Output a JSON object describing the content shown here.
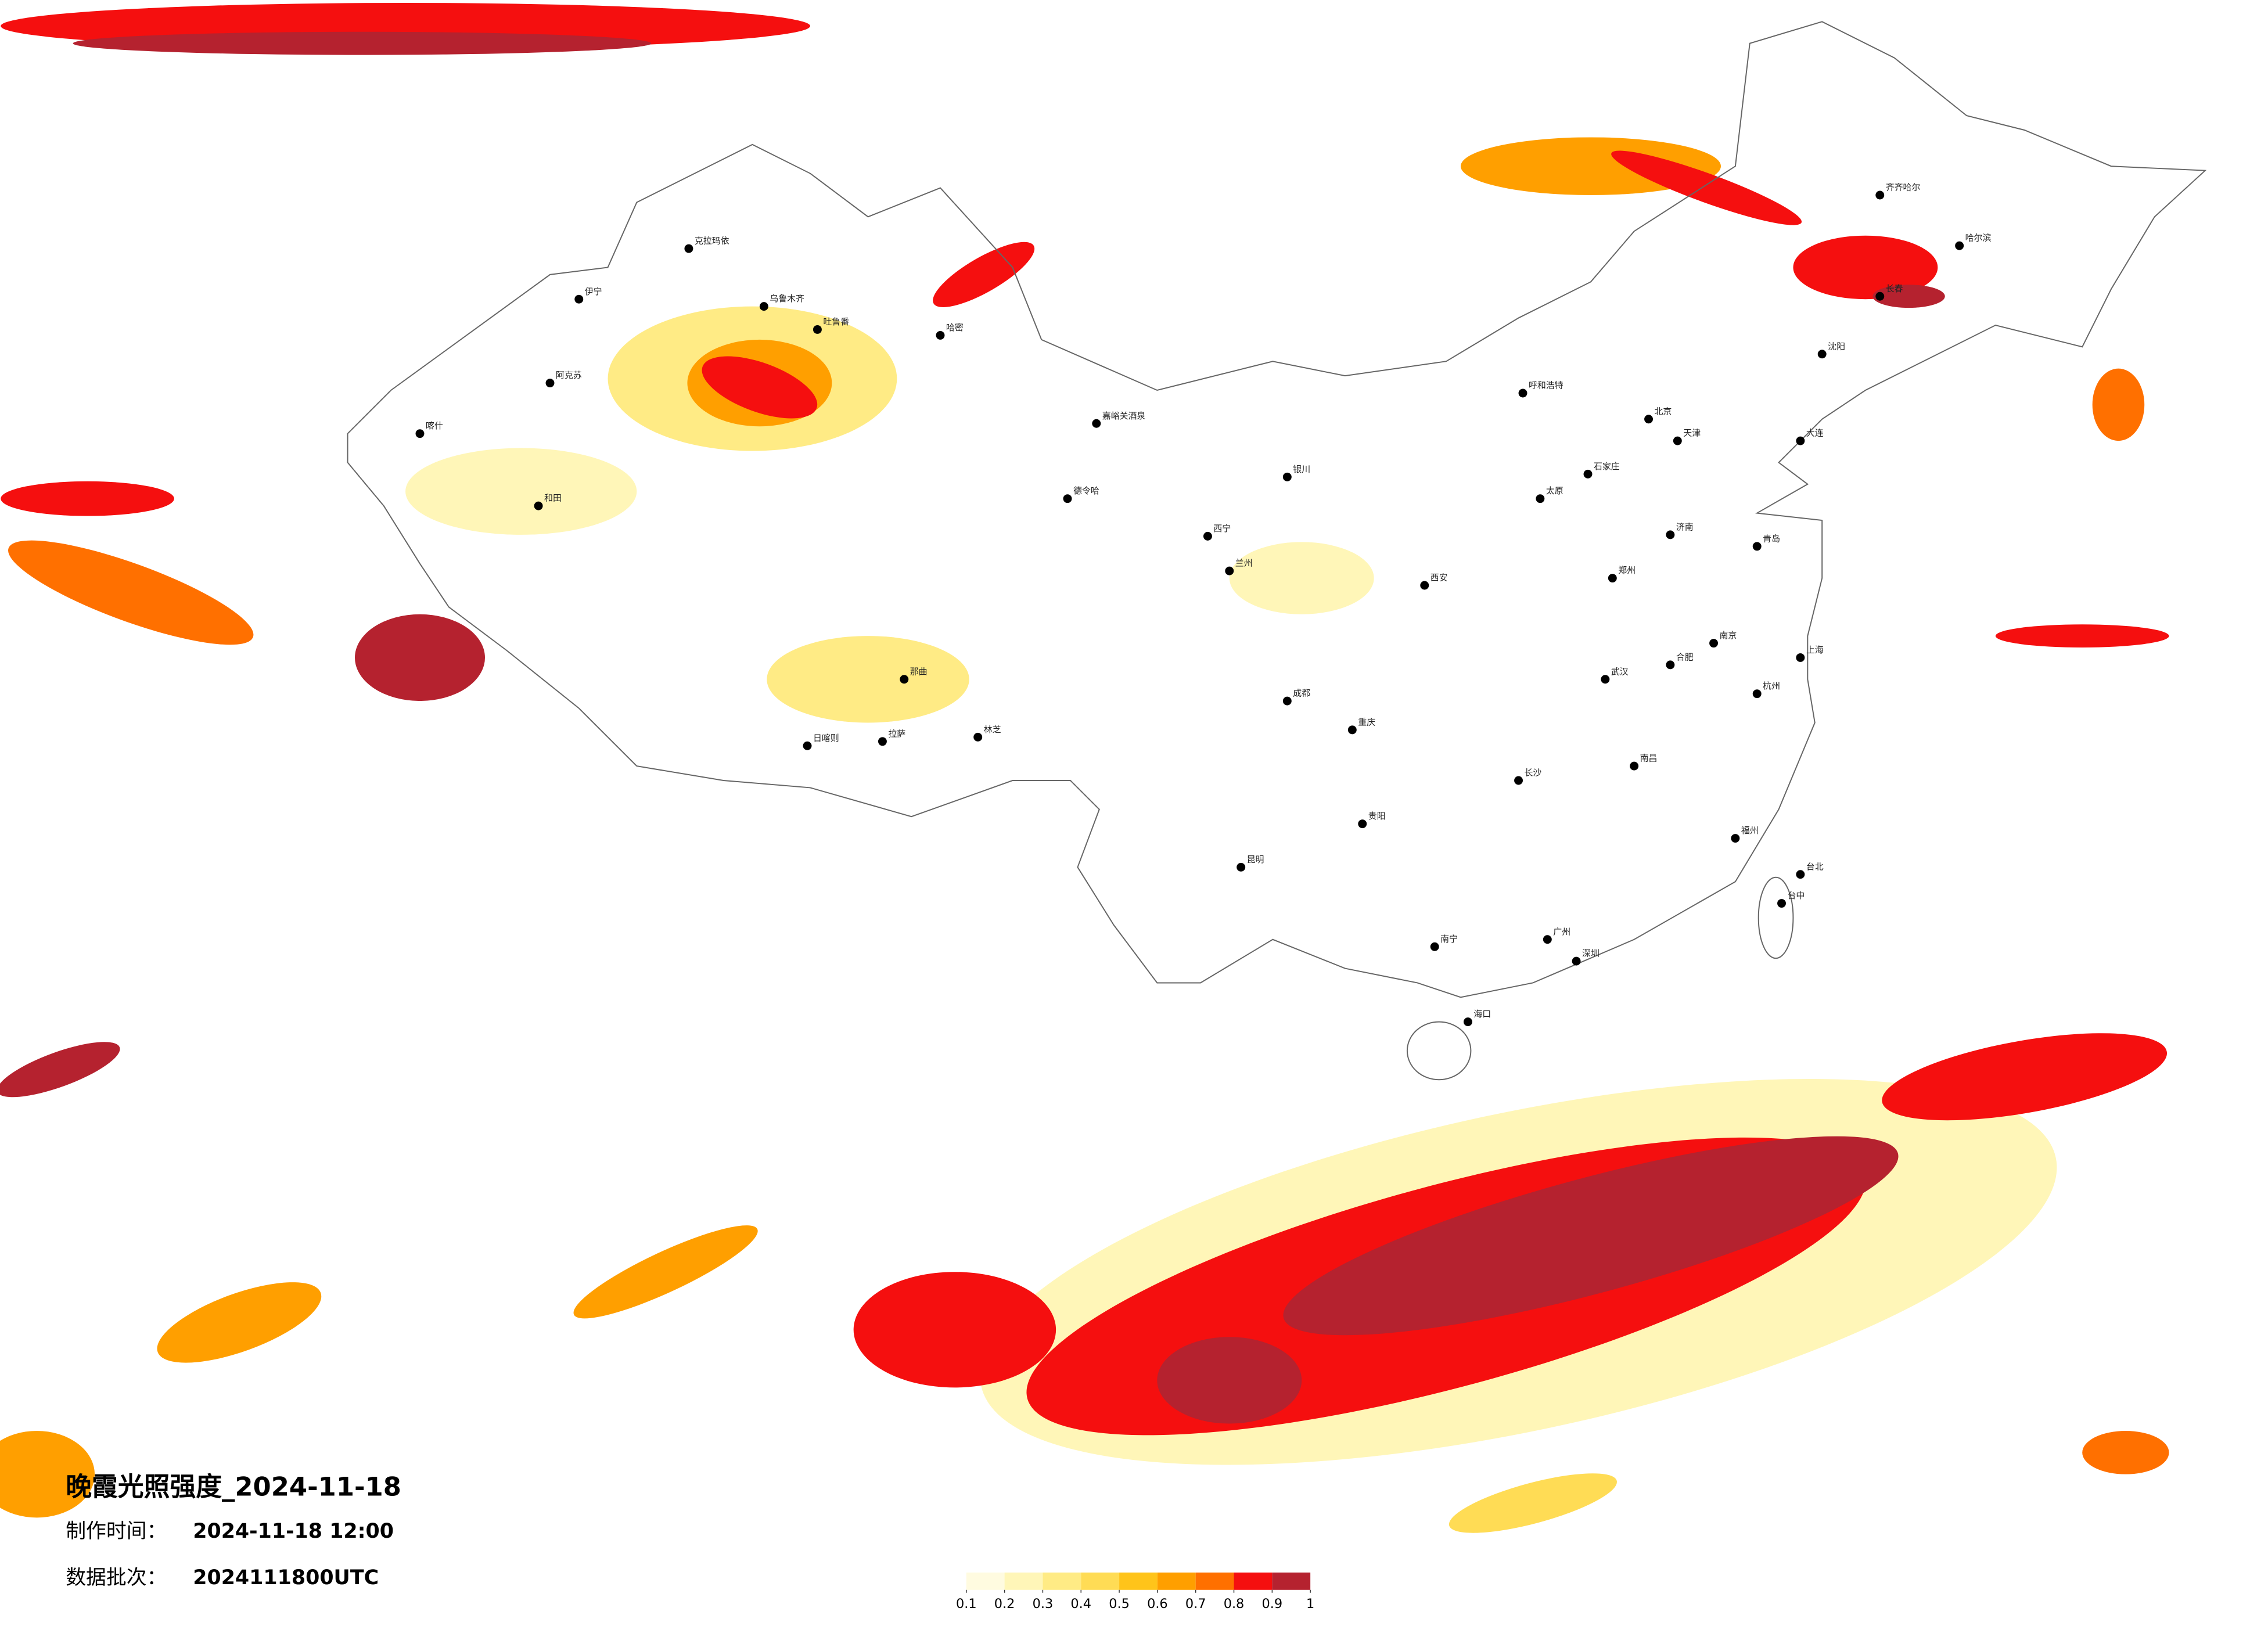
{
  "header": {
    "title": "晚霞光照强度_2024-11-18",
    "made_label": "制作时间：",
    "made_value": "2024-11-18 12:00",
    "batch_label": "数据批次：",
    "batch_value": "2024111800UTC"
  },
  "legend": {
    "ticks": [
      0.1,
      0.2,
      0.3,
      0.4,
      0.5,
      0.6,
      0.7,
      0.8,
      0.9,
      1
    ],
    "colors": [
      "#fffbe0",
      "#fff6b8",
      "#ffeb85",
      "#ffdc55",
      "#ffc41a",
      "#ff9f00",
      "#ff7000",
      "#f50f0f",
      "#b5222f"
    ]
  },
  "cities": [
    "克拉玛依",
    "伊宁",
    "阿克苏",
    "喀什",
    "和田",
    "乌鲁木齐",
    "吐鲁番",
    "哈密",
    "德令哈",
    "嘉峪关酒泉",
    "拉萨",
    "日喀则",
    "林芝",
    "那曲",
    "西宁",
    "兰州",
    "银川",
    "呼和浩特",
    "北京",
    "天津",
    "石家庄",
    "太原",
    "郑州",
    "西安",
    "成都",
    "重庆",
    "贵阳",
    "昆明",
    "南宁",
    "广州",
    "深圳",
    "海口",
    "长沙",
    "武汉",
    "南昌",
    "福州",
    "杭州",
    "上海",
    "南京",
    "合肥",
    "济南",
    "青岛",
    "沈阳",
    "长春",
    "哈尔滨",
    "齐齐哈尔",
    "大连",
    "台北",
    "台中"
  ]
}
